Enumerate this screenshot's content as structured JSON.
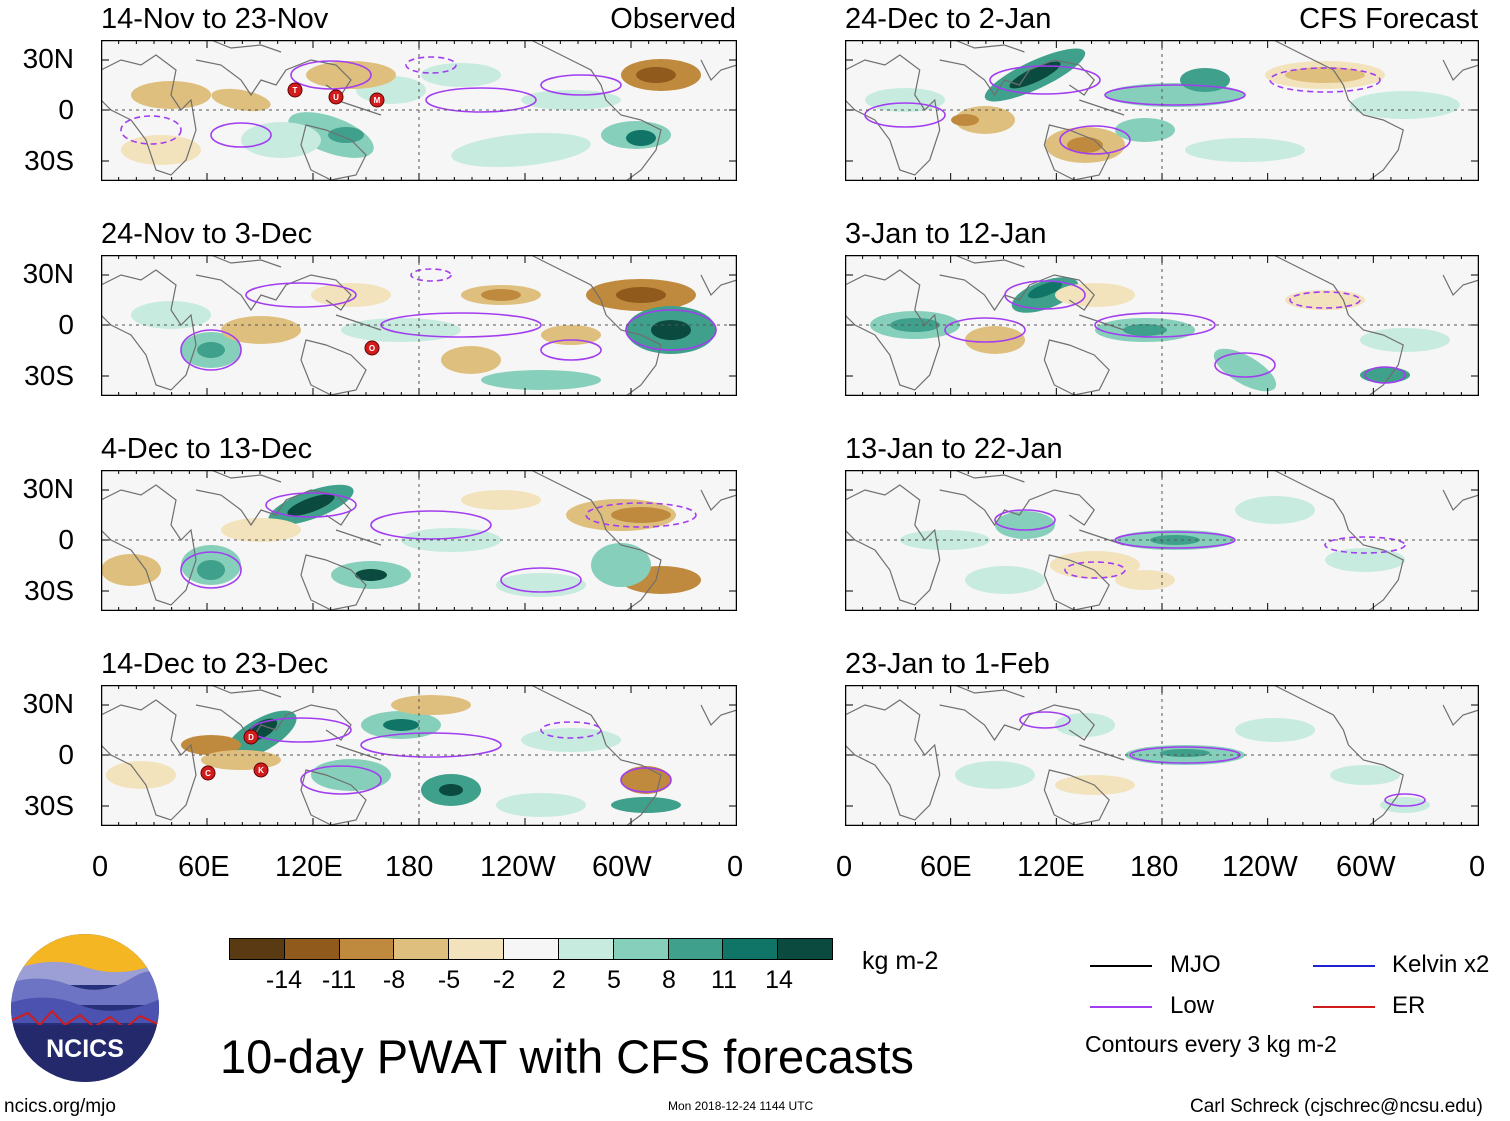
{
  "colors": {
    "brown_dark": "#5a3a12",
    "brown": "#8f5a1c",
    "brown_mid": "#c08a3e",
    "tan": "#dfbf7d",
    "sand": "#f3e3bd",
    "white": "#f6f6f6",
    "mint": "#c8ebe0",
    "teal_light": "#86cfbb",
    "teal": "#3fa08b",
    "teal_dark": "#107566",
    "teal_darkest": "#0b4a3e",
    "purple": "#a23df0",
    "mjo": "#000000",
    "kelvin": "#2020d0",
    "er": "#d01c1c",
    "storm": "#d01c1c"
  },
  "lat_labels": [
    "30N",
    "0",
    "30S"
  ],
  "lon_labels": [
    "0",
    "60E",
    "120E",
    "180",
    "120W",
    "60W",
    "0"
  ],
  "observed": {
    "tag": "Observed",
    "panels": [
      {
        "title": "14-Nov to 23-Nov",
        "storms": [
          "T",
          "U",
          "M"
        ]
      },
      {
        "title": "24-Nov to 3-Dec",
        "storms": [
          "O"
        ]
      },
      {
        "title": "4-Dec to 13-Dec",
        "storms": []
      },
      {
        "title": "14-Dec to 23-Dec",
        "storms": [
          "D",
          "C",
          "K"
        ]
      }
    ]
  },
  "forecast": {
    "tag": "CFS Forecast",
    "panels": [
      {
        "title": "24-Dec to 2-Jan"
      },
      {
        "title": "3-Jan to 12-Jan"
      },
      {
        "title": "13-Jan to 22-Jan"
      },
      {
        "title": "23-Jan to 1-Feb"
      }
    ]
  },
  "colorbar": {
    "ticks": [
      "-14",
      "-11",
      "-8",
      "-5",
      "-2",
      "2",
      "5",
      "8",
      "11",
      "14"
    ],
    "units": "kg m-2"
  },
  "legend": {
    "mjo": "MJO",
    "low": "Low",
    "kelvin": "Kelvin x2",
    "er": "ER",
    "note": "Contours every 3 kg m-2"
  },
  "title": "10-day PWAT with CFS forecasts",
  "logo_text": "NCICS",
  "footer": {
    "url": "ncics.org/mjo",
    "timestamp": "Mon 2018-12-24 1144 UTC",
    "credit": "Carl Schreck (cjschrec@ncsu.edu)"
  }
}
